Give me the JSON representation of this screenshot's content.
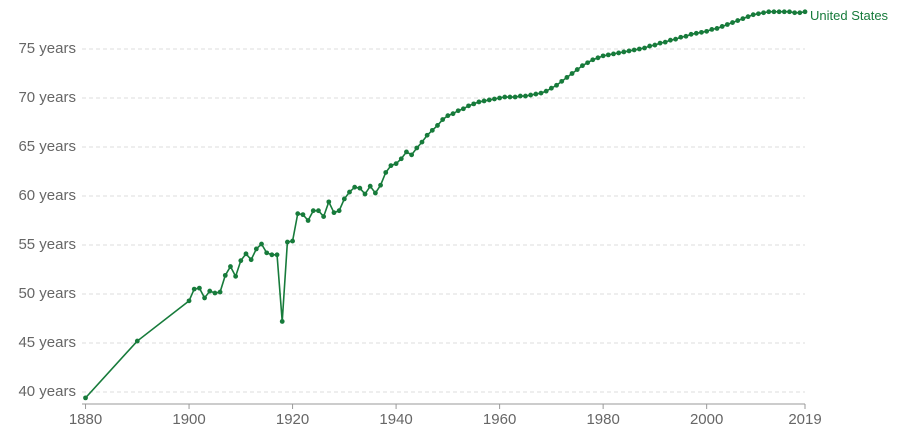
{
  "chart_data": {
    "type": "line",
    "x": [
      1880,
      1890,
      1900,
      1901,
      1902,
      1903,
      1904,
      1905,
      1906,
      1907,
      1908,
      1909,
      1910,
      1911,
      1912,
      1913,
      1914,
      1915,
      1916,
      1917,
      1918,
      1919,
      1920,
      1921,
      1922,
      1923,
      1924,
      1925,
      1926,
      1927,
      1928,
      1929,
      1930,
      1931,
      1932,
      1933,
      1934,
      1935,
      1936,
      1937,
      1938,
      1939,
      1940,
      1941,
      1942,
      1943,
      1944,
      1945,
      1946,
      1947,
      1948,
      1949,
      1950,
      1951,
      1952,
      1953,
      1954,
      1955,
      1956,
      1957,
      1958,
      1959,
      1960,
      1961,
      1962,
      1963,
      1964,
      1965,
      1966,
      1967,
      1968,
      1969,
      1970,
      1971,
      1972,
      1973,
      1974,
      1975,
      1976,
      1977,
      1978,
      1979,
      1980,
      1981,
      1982,
      1983,
      1984,
      1985,
      1986,
      1987,
      1988,
      1989,
      1990,
      1991,
      1992,
      1993,
      1994,
      1995,
      1996,
      1997,
      1998,
      1999,
      2000,
      2001,
      2002,
      2003,
      2004,
      2005,
      2006,
      2007,
      2008,
      2009,
      2010,
      2011,
      2012,
      2013,
      2014,
      2015,
      2016,
      2017,
      2018,
      2019
    ],
    "series": [
      {
        "name": "United States",
        "color": "#177b3b",
        "values": [
          39.4,
          45.2,
          49.3,
          50.5,
          50.6,
          49.6,
          50.3,
          50.1,
          50.2,
          51.9,
          52.8,
          51.8,
          53.4,
          54.1,
          53.5,
          54.6,
          55.1,
          54.2,
          54.0,
          54.0,
          47.2,
          55.3,
          55.4,
          58.2,
          58.1,
          57.5,
          58.5,
          58.5,
          57.9,
          59.4,
          58.3,
          58.5,
          59.7,
          60.4,
          60.9,
          60.8,
          60.2,
          61.0,
          60.3,
          61.1,
          62.4,
          63.1,
          63.3,
          63.8,
          64.5,
          64.2,
          64.9,
          65.5,
          66.2,
          66.7,
          67.2,
          67.8,
          68.2,
          68.4,
          68.7,
          68.9,
          69.2,
          69.4,
          69.6,
          69.7,
          69.8,
          69.9,
          70.0,
          70.1,
          70.1,
          70.1,
          70.2,
          70.2,
          70.3,
          70.4,
          70.5,
          70.7,
          71.0,
          71.3,
          71.7,
          72.1,
          72.5,
          72.9,
          73.3,
          73.6,
          73.9,
          74.1,
          74.3,
          74.4,
          74.5,
          74.6,
          74.7,
          74.8,
          74.9,
          75.0,
          75.1,
          75.3,
          75.4,
          75.6,
          75.7,
          75.9,
          76.0,
          76.2,
          76.3,
          76.5,
          76.6,
          76.7,
          76.8,
          77.0,
          77.1,
          77.3,
          77.5,
          77.7,
          77.9,
          78.1,
          78.3,
          78.5,
          78.6,
          78.7,
          78.8,
          78.8,
          78.8,
          78.8,
          78.8,
          78.7,
          78.7,
          78.8
        ]
      }
    ],
    "xlim": [
      1877,
      2019
    ],
    "xticks": [
      1880,
      1900,
      1920,
      1940,
      1960,
      1980,
      2000,
      2019
    ],
    "ylim": [
      39,
      79
    ],
    "yticks": [
      {
        "value": 40,
        "label": "40 years"
      },
      {
        "value": 45,
        "label": "45 years"
      },
      {
        "value": 50,
        "label": "50 years"
      },
      {
        "value": 55,
        "label": "55 years"
      },
      {
        "value": 60,
        "label": "60 years"
      },
      {
        "value": 65,
        "label": "65 years"
      },
      {
        "value": 70,
        "label": "70 years"
      },
      {
        "value": 75,
        "label": "75 years"
      }
    ],
    "grid": true
  }
}
